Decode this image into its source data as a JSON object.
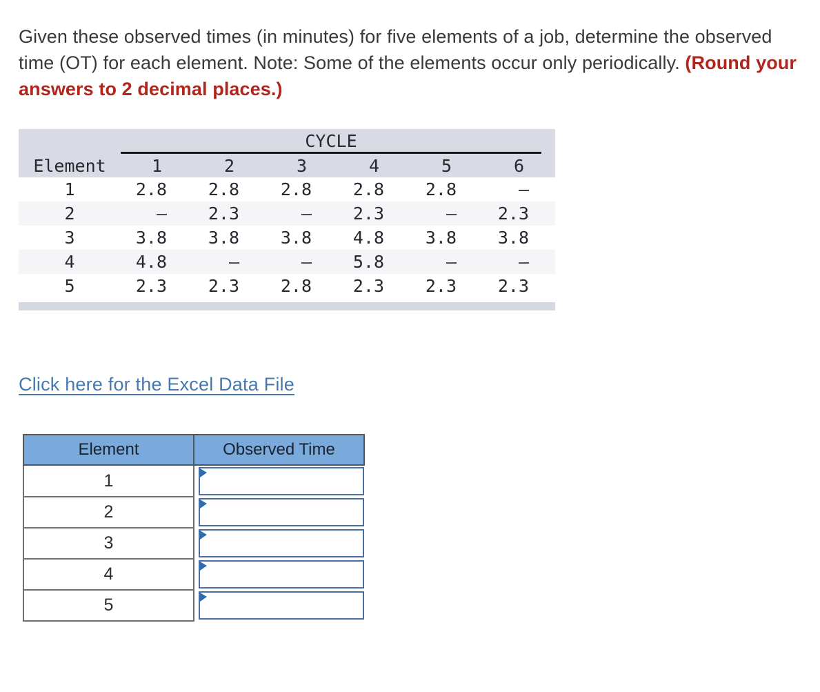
{
  "question": {
    "text_normal": "Given these observed times (in minutes) for five elements of a job, determine the observed time (OT) for each element. Note: Some of the elements occur only periodically. ",
    "text_emphasis": "(Round your answers to 2 decimal places.)"
  },
  "cycle_table": {
    "group_header": "CYCLE",
    "corner_header": "Element",
    "cycle_columns": [
      "1",
      "2",
      "3",
      "4",
      "5",
      "6"
    ],
    "rows": [
      {
        "element": "1",
        "values": [
          "2.8",
          "2.8",
          "2.8",
          "2.8",
          "2.8",
          "–"
        ]
      },
      {
        "element": "2",
        "values": [
          "–",
          "2.3",
          "–",
          "2.3",
          "–",
          "2.3"
        ]
      },
      {
        "element": "3",
        "values": [
          "3.8",
          "3.8",
          "3.8",
          "4.8",
          "3.8",
          "3.8"
        ]
      },
      {
        "element": "4",
        "values": [
          "4.8",
          "–",
          "–",
          "5.8",
          "–",
          "–"
        ]
      },
      {
        "element": "5",
        "values": [
          "2.3",
          "2.3",
          "2.8",
          "2.3",
          "2.3",
          "2.3"
        ]
      }
    ]
  },
  "excel_link": {
    "label": "Click here for the Excel Data File"
  },
  "answer_table": {
    "headers": {
      "element": "Element",
      "observed_time": "Observed Time"
    },
    "rows": [
      {
        "element": "1",
        "value": ""
      },
      {
        "element": "2",
        "value": ""
      },
      {
        "element": "3",
        "value": ""
      },
      {
        "element": "4",
        "value": ""
      },
      {
        "element": "5",
        "value": ""
      }
    ]
  },
  "colors": {
    "emphasis_red": "#b0261c",
    "link_blue": "#4879ae",
    "cycle_header_band": "#d8dbe4",
    "cycle_alt_row": "#f5f5f7",
    "cycle_footer_bar": "#d3d8e1",
    "answer_header_blue": "#7aa9dc",
    "input_border_blue": "#4a6f9e",
    "input_flag_blue": "#2e6cb2"
  }
}
